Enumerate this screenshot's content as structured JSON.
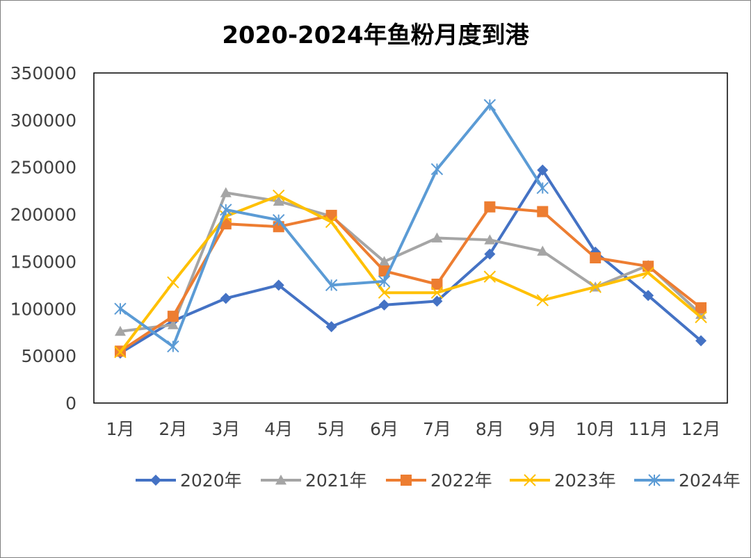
{
  "chart_data": {
    "type": "line",
    "title": "2020-2024年鱼粉月度到港",
    "xlabel": "",
    "ylabel": "",
    "ylim": [
      0,
      350000
    ],
    "ytick_step": 50000,
    "categories": [
      "1月",
      "2月",
      "3月",
      "4月",
      "5月",
      "6月",
      "7月",
      "8月",
      "9月",
      "10月",
      "11月",
      "12月"
    ],
    "grid": false,
    "legend_position": "bottom",
    "series": [
      {
        "name": "2020年",
        "color": "#4472c4",
        "marker": "diamond",
        "values": [
          53000,
          87000,
          111000,
          125000,
          81000,
          104000,
          108000,
          158000,
          247000,
          160000,
          114000,
          66000
        ]
      },
      {
        "name": "2021年",
        "color": "#a5a5a5",
        "marker": "triangle",
        "values": [
          76000,
          83000,
          223000,
          214000,
          198000,
          150000,
          175000,
          173000,
          161000,
          123000,
          146000,
          94000
        ]
      },
      {
        "name": "2022年",
        "color": "#ed7d31",
        "marker": "square",
        "values": [
          55000,
          92000,
          190000,
          187000,
          199000,
          140000,
          126000,
          208000,
          203000,
          154000,
          145000,
          101000
        ]
      },
      {
        "name": "2023年",
        "color": "#ffc000",
        "marker": "x",
        "values": [
          54000,
          128000,
          198000,
          220000,
          192000,
          117000,
          117000,
          134000,
          109000,
          123000,
          138000,
          91000
        ]
      },
      {
        "name": "2024年",
        "color": "#5b9bd5",
        "marker": "star",
        "values": [
          100000,
          60000,
          205000,
          194000,
          125000,
          129000,
          248000,
          316000,
          228000,
          null,
          null,
          null
        ]
      }
    ]
  }
}
